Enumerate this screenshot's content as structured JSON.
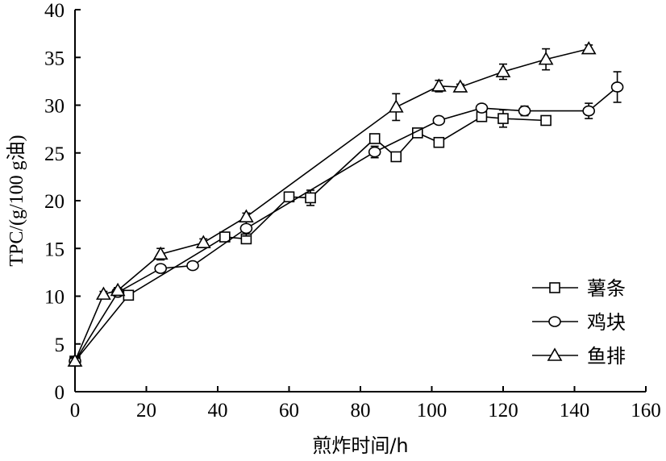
{
  "chart_data": {
    "type": "line",
    "xlabel": "煎炸时间/h",
    "ylabel": "TPC/(g/100 g油)",
    "xlim": [
      0,
      160
    ],
    "ylim": [
      0,
      40
    ],
    "xticks": [
      0,
      20,
      40,
      60,
      80,
      100,
      120,
      140,
      160
    ],
    "yticks": [
      0,
      5,
      10,
      15,
      20,
      25,
      30,
      35,
      40
    ],
    "grid": false,
    "legend_position": "bottom-right",
    "series": [
      {
        "name": "薯条",
        "marker": "square",
        "points": [
          {
            "x": 0,
            "y": 3.2,
            "err": 0.3
          },
          {
            "x": 15,
            "y": 10.1,
            "err": 0.3
          },
          {
            "x": 42,
            "y": 16.2,
            "err": 0.2
          },
          {
            "x": 48,
            "y": 16.0,
            "err": 0.3
          },
          {
            "x": 60,
            "y": 20.4,
            "err": 0.3
          },
          {
            "x": 66,
            "y": 20.3,
            "err": 0.8
          },
          {
            "x": 84,
            "y": 26.5,
            "err": 0.3
          },
          {
            "x": 90,
            "y": 24.6,
            "err": 0.3
          },
          {
            "x": 96,
            "y": 27.1,
            "err": 0.3
          },
          {
            "x": 102,
            "y": 26.1,
            "err": 0.5
          },
          {
            "x": 114,
            "y": 28.8,
            "err": 0.3
          },
          {
            "x": 120,
            "y": 28.6,
            "err": 0.9
          },
          {
            "x": 132,
            "y": 28.4,
            "err": 0.2
          }
        ]
      },
      {
        "name": "鸡块",
        "marker": "circle",
        "points": [
          {
            "x": 0,
            "y": 3.2,
            "err": 0.3
          },
          {
            "x": 12,
            "y": 10.4,
            "err": 0.3
          },
          {
            "x": 24,
            "y": 12.9,
            "err": 0.4
          },
          {
            "x": 33,
            "y": 13.2,
            "err": 0.3
          },
          {
            "x": 48,
            "y": 17.1,
            "err": 0.8
          },
          {
            "x": 84,
            "y": 25.1,
            "err": 0.6
          },
          {
            "x": 102,
            "y": 28.4,
            "err": 0.3
          },
          {
            "x": 114,
            "y": 29.7,
            "err": 0.4
          },
          {
            "x": 126,
            "y": 29.4,
            "err": 0.5
          },
          {
            "x": 144,
            "y": 29.4,
            "err": 0.8
          },
          {
            "x": 152,
            "y": 31.9,
            "err": 1.6
          }
        ]
      },
      {
        "name": "鱼排",
        "marker": "triangle",
        "points": [
          {
            "x": 0,
            "y": 3.2,
            "err": 0.3
          },
          {
            "x": 8,
            "y": 10.2,
            "err": 0.3
          },
          {
            "x": 12,
            "y": 10.6,
            "err": 0.3
          },
          {
            "x": 24,
            "y": 14.4,
            "err": 0.6
          },
          {
            "x": 36,
            "y": 15.6,
            "err": 0.4
          },
          {
            "x": 48,
            "y": 18.3,
            "err": 0.4
          },
          {
            "x": 90,
            "y": 29.8,
            "err": 1.4
          },
          {
            "x": 102,
            "y": 32.0,
            "err": 0.6
          },
          {
            "x": 108,
            "y": 31.9,
            "err": 0.3
          },
          {
            "x": 120,
            "y": 33.5,
            "err": 0.8
          },
          {
            "x": 132,
            "y": 34.8,
            "err": 1.1
          },
          {
            "x": 144,
            "y": 35.9,
            "err": 0.4
          }
        ]
      }
    ]
  }
}
